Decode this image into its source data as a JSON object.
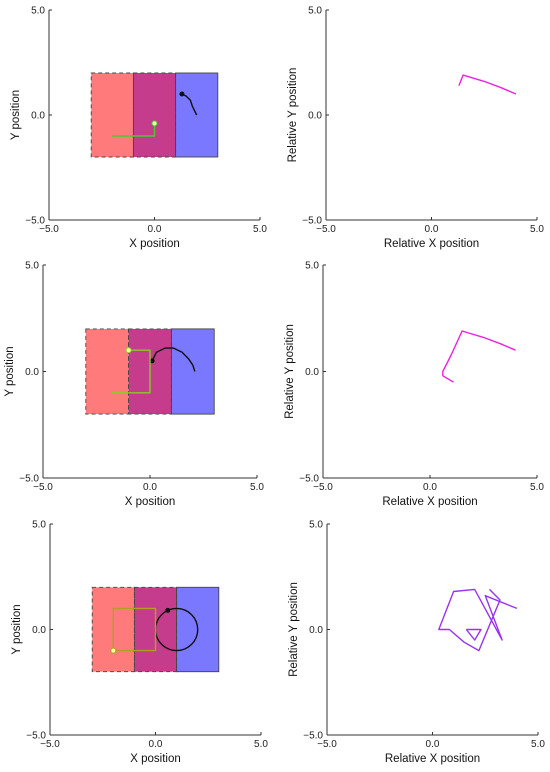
{
  "chart_data": [
    {
      "type": "line",
      "panel": "row-1-left",
      "xlabel": "X position",
      "ylabel": "Y position",
      "xlim": [
        -5,
        5
      ],
      "ylim": [
        -5,
        5
      ],
      "xticks": [
        "−5.0",
        "0.0",
        "5.0"
      ],
      "yticks": [
        "−5.0",
        "0.0",
        "5.0"
      ],
      "grid": false,
      "regions": [
        {
          "x": [
            -3,
            -1
          ],
          "y": [
            -2,
            2
          ],
          "color": "#ff7b7b",
          "border": "dashed"
        },
        {
          "x": [
            -1,
            1
          ],
          "y": [
            -2,
            2
          ],
          "color": "#c63c8c",
          "border": "dashed"
        },
        {
          "x": [
            1,
            3
          ],
          "y": [
            -2,
            2
          ],
          "color": "#7a78ff",
          "border": "solid"
        }
      ],
      "series": [
        {
          "color": "#111111",
          "marker_at": "start",
          "x": [
            1.3,
            1.5,
            1.7,
            1.8,
            2.0
          ],
          "y": [
            1.0,
            0.9,
            0.7,
            0.4,
            0.0
          ]
        },
        {
          "color": "#44cc33",
          "marker_at": "end",
          "x": [
            -2.0,
            -1.0,
            0.0,
            0.0
          ],
          "y": [
            -1.0,
            -1.0,
            -1.0,
            -0.4
          ]
        }
      ]
    },
    {
      "type": "line",
      "panel": "row-1-right",
      "xlabel": "Relative X position",
      "ylabel": "Relative Y position",
      "xlim": [
        -5,
        5
      ],
      "ylim": [
        -5,
        5
      ],
      "xticks": [
        "−5.0",
        "0.0",
        "5.0"
      ],
      "yticks": [
        "−5.0",
        "0.0",
        "5.0"
      ],
      "grid": false,
      "series": [
        {
          "color": "#ee22dd",
          "x": [
            1.3,
            1.5,
            2.5,
            3.3,
            4.0
          ],
          "y": [
            1.4,
            1.9,
            1.6,
            1.3,
            1.0
          ]
        }
      ]
    },
    {
      "type": "line",
      "panel": "row-2-left",
      "xlabel": "X position",
      "ylabel": "Y position",
      "xlim": [
        -5,
        5
      ],
      "ylim": [
        -5,
        5
      ],
      "xticks": [
        "−5.0",
        "0.0",
        "5.0"
      ],
      "yticks": [
        "−5.0",
        "0.0",
        "5.0"
      ],
      "grid": false,
      "regions": [
        {
          "x": [
            -3,
            -1
          ],
          "y": [
            -2,
            2
          ],
          "color": "#ff7b7b",
          "border": "dashed"
        },
        {
          "x": [
            -1,
            1
          ],
          "y": [
            -2,
            2
          ],
          "color": "#c63c8c",
          "border": "dashed"
        },
        {
          "x": [
            1,
            3
          ],
          "y": [
            -2,
            2
          ],
          "color": "#7a78ff",
          "border": "solid"
        }
      ],
      "series": [
        {
          "color": "#111111",
          "marker_at": "start",
          "x": [
            0.1,
            0.3,
            0.7,
            1.1,
            1.5,
            1.8,
            2.0,
            2.1
          ],
          "y": [
            0.5,
            0.9,
            1.1,
            1.1,
            0.9,
            0.6,
            0.3,
            0.0
          ]
        },
        {
          "color": "#88cc22",
          "marker_at": "end",
          "x": [
            -1.8,
            0.0,
            0.0,
            -1.0
          ],
          "y": [
            -1.0,
            -1.0,
            1.0,
            1.0
          ]
        }
      ]
    },
    {
      "type": "line",
      "panel": "row-2-right",
      "xlabel": "Relative X position",
      "ylabel": "Relative Y position",
      "xlim": [
        -5,
        5
      ],
      "ylim": [
        -5,
        5
      ],
      "xticks": [
        "−5.0",
        "0.0",
        "5.0"
      ],
      "yticks": [
        "−5.0",
        "0.0",
        "5.0"
      ],
      "grid": false,
      "series": [
        {
          "color": "#ee22dd",
          "x": [
            1.1,
            0.6,
            0.6,
            1.0,
            1.5,
            2.5,
            3.3,
            4.0
          ],
          "y": [
            -0.5,
            -0.2,
            0.0,
            0.8,
            1.9,
            1.6,
            1.3,
            1.0
          ]
        }
      ]
    },
    {
      "type": "line",
      "panel": "row-3-left",
      "xlabel": "X position",
      "ylabel": "Y position",
      "xlim": [
        -5,
        5
      ],
      "ylim": [
        -5,
        5
      ],
      "xticks": [
        "−5.0",
        "0.0",
        "5.0"
      ],
      "yticks": [
        "−5.0",
        "0.0",
        "5.0"
      ],
      "grid": false,
      "regions": [
        {
          "x": [
            -3,
            -1
          ],
          "y": [
            -2,
            2
          ],
          "color": "#ff7b7b",
          "border": "dashed"
        },
        {
          "x": [
            -1,
            1
          ],
          "y": [
            -2,
            2
          ],
          "color": "#c63c8c",
          "border": "dashed"
        },
        {
          "x": [
            1,
            3
          ],
          "y": [
            -2,
            2
          ],
          "color": "#7a78ff",
          "border": "solid"
        }
      ],
      "series": [
        {
          "color": "#111111",
          "marker_at": "start",
          "circle": {
            "cx": 1.0,
            "cy": 0.0,
            "r": 1.0
          },
          "x": [],
          "y": []
        },
        {
          "color": "#b0a020",
          "marker_at": "start",
          "x": [
            -2.0,
            -2.0,
            0.0,
            0.0,
            -2.0,
            -2.0
          ],
          "y": [
            -1.0,
            1.0,
            1.0,
            -1.0,
            -1.0,
            -1.0
          ]
        }
      ]
    },
    {
      "type": "line",
      "panel": "row-3-right",
      "xlabel": "Relative X position",
      "ylabel": "Relative Y position",
      "xlim": [
        -5,
        5
      ],
      "ylim": [
        -5,
        5
      ],
      "xticks": [
        "−5.0",
        "0.0",
        "5.0"
      ],
      "yticks": [
        "−5.0",
        "0.0",
        "5.0"
      ],
      "grid": false,
      "series": [
        {
          "color": "#9933ee",
          "x": [
            2.7,
            3.2,
            2.2,
            1.5,
            0.8,
            0.3,
            1.0,
            2.0,
            3.3,
            2.5,
            4.0
          ],
          "y": [
            1.9,
            1.4,
            -1.0,
            -0.6,
            0.0,
            0.0,
            1.8,
            1.9,
            -0.5,
            1.6,
            1.0
          ]
        },
        {
          "color": "#9933ee",
          "x": [
            1.6,
            2.3,
            2.0,
            1.6
          ],
          "y": [
            0.0,
            0.0,
            -0.5,
            0.0
          ]
        }
      ]
    }
  ]
}
